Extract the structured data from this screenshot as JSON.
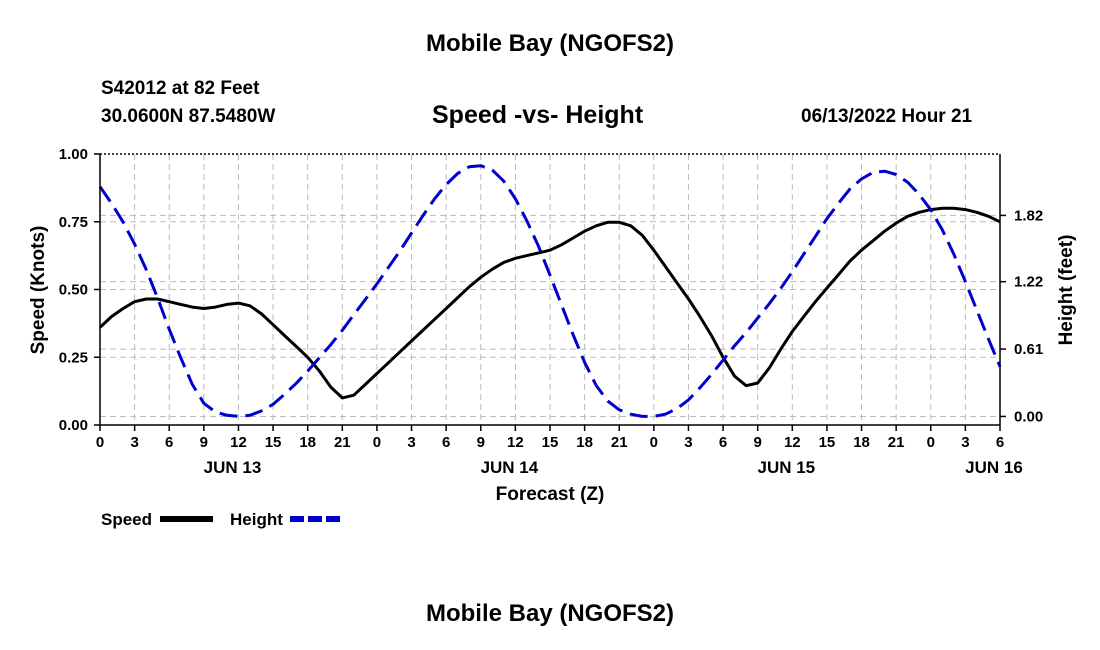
{
  "page": {
    "title_top": "Mobile Bay (NGOFS2)",
    "title_bottom": "Mobile Bay (NGOFS2)",
    "station": "S42012 at 82 Feet",
    "coords": "30.0600N  87.5480W",
    "chart_title": "Speed -vs- Height",
    "date_label": "06/13/2022 Hour 21"
  },
  "colors": {
    "speed": "#000000",
    "height": "#0000cc",
    "grid": "#bbbbbb"
  },
  "chart_data": {
    "type": "line",
    "title": "Speed -vs- Height",
    "xlabel": "Forecast (Z)",
    "ylabel": "Speed (Knots)",
    "y2label": "Height (feet)",
    "xlim": [
      0,
      78
    ],
    "ylim": [
      0,
      1.0
    ],
    "y2lim": [
      -0.0775,
      2.376
    ],
    "x_ticks": [
      0,
      3,
      6,
      9,
      12,
      15,
      18,
      21,
      24,
      27,
      30,
      33,
      36,
      39,
      42,
      45,
      48,
      51,
      54,
      57,
      60,
      63,
      66,
      69,
      72,
      75,
      78
    ],
    "x_tick_labels": [
      "0",
      "3",
      "6",
      "9",
      "12",
      "15",
      "18",
      "21",
      "0",
      "3",
      "6",
      "9",
      "12",
      "15",
      "18",
      "21",
      "0",
      "3",
      "6",
      "9",
      "12",
      "15",
      "18",
      "21",
      "0",
      "3",
      "6"
    ],
    "day_labels": [
      {
        "x": 12,
        "label": "JUN 13"
      },
      {
        "x": 36,
        "label": "JUN 14"
      },
      {
        "x": 60,
        "label": "JUN 15"
      },
      {
        "x": 78,
        "label": "JUN 16"
      }
    ],
    "y_ticks": [
      0,
      0.25,
      0.5,
      0.75,
      1.0
    ],
    "y_tick_labels": [
      "0.00",
      "0.25",
      "0.50",
      "0.75",
      "1.00"
    ],
    "y2_ticks": [
      0,
      0.61,
      1.22,
      1.82
    ],
    "y2_tick_labels": [
      "0.00",
      "0.61",
      "1.22",
      "1.82"
    ],
    "grid": true,
    "legend_position": "bottom-left",
    "series": [
      {
        "name": "Speed",
        "axis": "left",
        "style": "solid",
        "x": [
          0,
          1,
          2,
          3,
          4,
          5,
          6,
          7,
          8,
          9,
          10,
          11,
          12,
          13,
          14,
          15,
          16,
          17,
          18,
          19,
          20,
          21,
          22,
          23,
          24,
          25,
          26,
          27,
          28,
          29,
          30,
          31,
          32,
          33,
          34,
          35,
          36,
          37,
          38,
          39,
          40,
          41,
          42,
          43,
          44,
          45,
          46,
          47,
          48,
          49,
          50,
          51,
          52,
          53,
          54,
          55,
          56,
          57,
          58,
          59,
          60,
          61,
          62,
          63,
          64,
          65,
          66,
          67,
          68,
          69,
          70,
          71,
          72,
          73,
          74,
          75,
          76,
          77,
          78
        ],
        "values": [
          0.36,
          0.4,
          0.43,
          0.455,
          0.465,
          0.465,
          0.455,
          0.445,
          0.435,
          0.43,
          0.435,
          0.445,
          0.45,
          0.44,
          0.41,
          0.37,
          0.33,
          0.29,
          0.25,
          0.2,
          0.14,
          0.1,
          0.11,
          0.15,
          0.19,
          0.23,
          0.27,
          0.31,
          0.35,
          0.39,
          0.43,
          0.47,
          0.51,
          0.545,
          0.575,
          0.6,
          0.615,
          0.625,
          0.635,
          0.645,
          0.665,
          0.69,
          0.715,
          0.735,
          0.748,
          0.748,
          0.735,
          0.7,
          0.645,
          0.585,
          0.525,
          0.465,
          0.4,
          0.33,
          0.25,
          0.18,
          0.145,
          0.155,
          0.21,
          0.28,
          0.345,
          0.4,
          0.455,
          0.505,
          0.555,
          0.605,
          0.645,
          0.68,
          0.715,
          0.745,
          0.77,
          0.785,
          0.795,
          0.8,
          0.8,
          0.795,
          0.785,
          0.77,
          0.75
        ]
      },
      {
        "name": "Height",
        "axis": "right",
        "style": "dashed",
        "x": [
          0,
          1,
          2,
          3,
          4,
          5,
          6,
          7,
          8,
          9,
          10,
          11,
          12,
          13,
          14,
          15,
          16,
          17,
          18,
          19,
          20,
          21,
          22,
          23,
          24,
          25,
          26,
          27,
          28,
          29,
          30,
          31,
          32,
          33,
          34,
          35,
          36,
          37,
          38,
          39,
          40,
          41,
          42,
          43,
          44,
          45,
          46,
          47,
          48,
          49,
          50,
          51,
          52,
          53,
          54,
          55,
          56,
          57,
          58,
          59,
          60,
          61,
          62,
          63,
          64,
          65,
          66,
          67,
          68,
          69,
          70,
          71,
          72,
          73,
          74,
          75,
          76,
          77,
          78
        ],
        "values": [
          2.08,
          1.93,
          1.76,
          1.56,
          1.33,
          1.07,
          0.79,
          0.53,
          0.29,
          0.12,
          0.04,
          0.01,
          0.0,
          0.01,
          0.05,
          0.11,
          0.2,
          0.3,
          0.41,
          0.53,
          0.65,
          0.78,
          0.92,
          1.06,
          1.2,
          1.35,
          1.5,
          1.66,
          1.82,
          1.97,
          2.1,
          2.2,
          2.26,
          2.27,
          2.23,
          2.13,
          1.97,
          1.77,
          1.54,
          1.28,
          1.01,
          0.74,
          0.49,
          0.28,
          0.14,
          0.06,
          0.02,
          0.0,
          0.0,
          0.02,
          0.07,
          0.15,
          0.26,
          0.38,
          0.51,
          0.64,
          0.76,
          0.89,
          1.02,
          1.16,
          1.31,
          1.47,
          1.63,
          1.79,
          1.93,
          2.06,
          2.15,
          2.21,
          2.22,
          2.19,
          2.12,
          2.01,
          1.87,
          1.69,
          1.47,
          1.22,
          0.96,
          0.7,
          0.45
        ]
      }
    ]
  }
}
